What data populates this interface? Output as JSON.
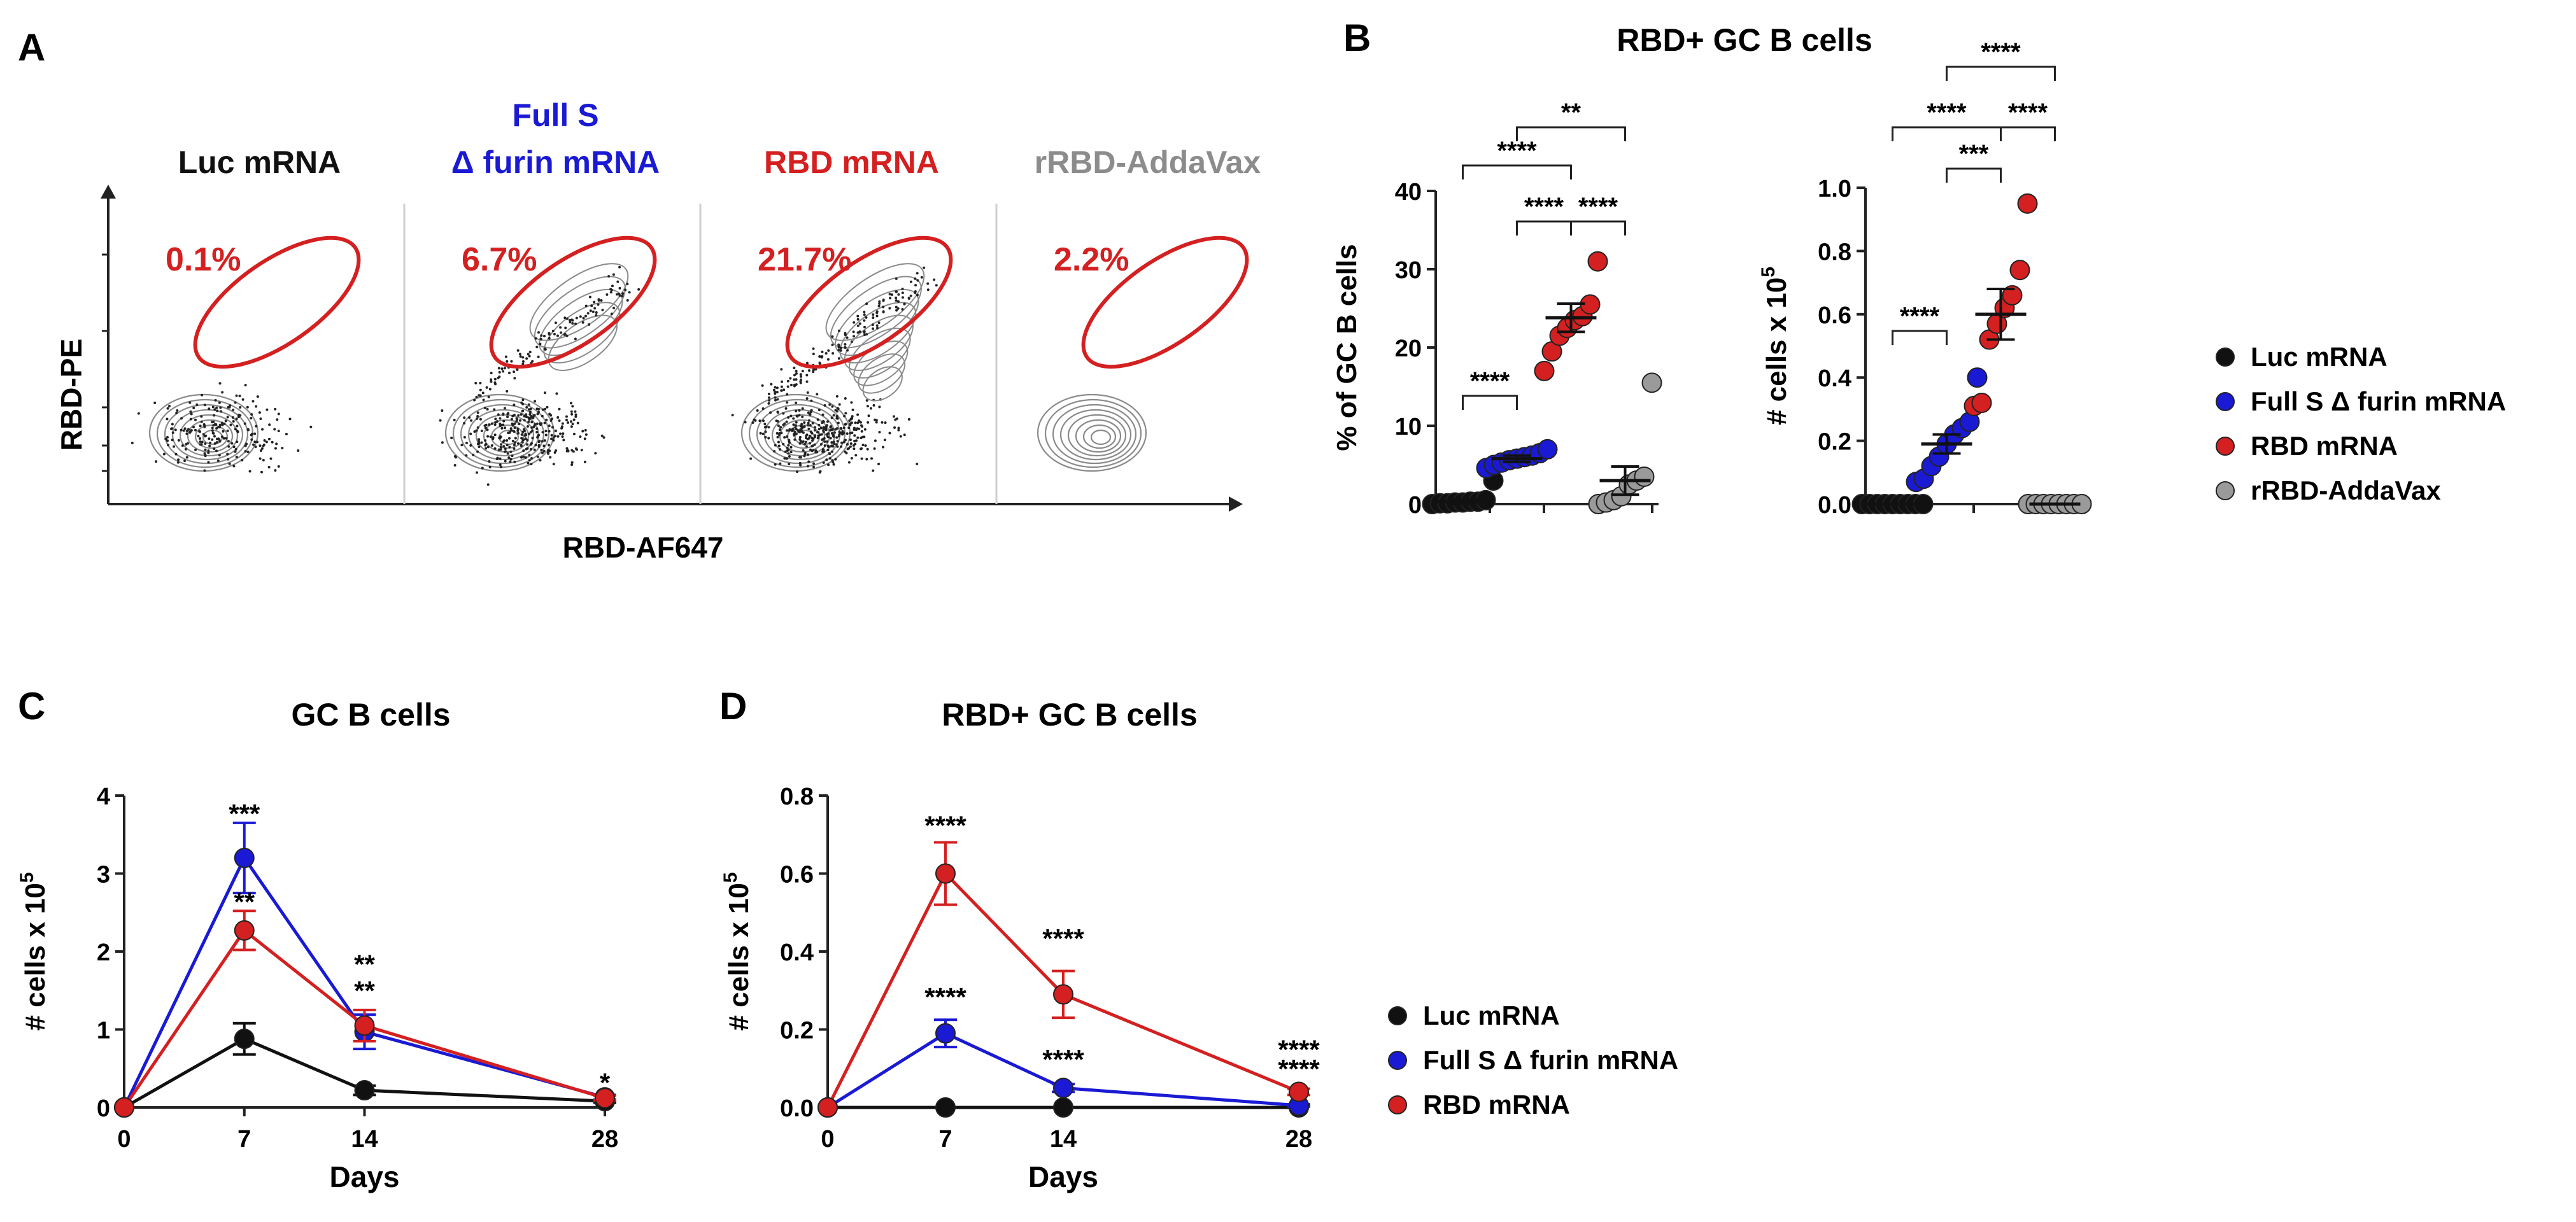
{
  "colors": {
    "luc": "#111111",
    "fulls": "#1a1ad4",
    "rbd": "#d42020",
    "rrbd": "#9a9a9a",
    "gate": "#d42020"
  },
  "panel_letters": {
    "a": "A",
    "b": "B",
    "c": "C",
    "d": "D"
  },
  "flow": {
    "ylabel": "RBD-PE",
    "xlabel": "RBD-AF647",
    "plots": [
      {
        "label_lines": [
          "Luc mRNA"
        ],
        "label_color": "#111111",
        "percent": "0.1%",
        "density": "low"
      },
      {
        "label_lines": [
          "Full S",
          "Δ furin mRNA"
        ],
        "label_color": "#1a1ad4",
        "percent": "6.7%",
        "density": "mid"
      },
      {
        "label_lines": [
          "RBD mRNA"
        ],
        "label_color": "#d42020",
        "percent": "21.7%",
        "density": "high"
      },
      {
        "label_lines": [
          "rRBD-AddaVax"
        ],
        "label_color": "#8c8c8c",
        "percent": "2.2%",
        "density": "none"
      }
    ]
  },
  "legend_b": [
    "Luc mRNA",
    "Full S Δ furin mRNA",
    "RBD mRNA",
    "rRBD-AddaVax"
  ],
  "legend_cd": [
    "Luc mRNA",
    "Full S Δ furin mRNA",
    "RBD mRNA"
  ],
  "chart_data": [
    {
      "id": "B-left",
      "type": "scatter",
      "title": "RBD+ GC B cells",
      "ylabel": "% of GC B cells",
      "ylim": [
        0,
        40
      ],
      "yticks": [
        "0",
        "10",
        "20",
        "30",
        "40"
      ],
      "groups": [
        {
          "name": "Luc mRNA",
          "mean": 0.3,
          "sem": 0.3,
          "values": [
            0.0,
            0.1,
            0.1,
            0.2,
            0.2,
            0.3,
            0.3,
            0.5,
            3.0
          ]
        },
        {
          "name": "Full S Δ furin mRNA",
          "mean": 5.8,
          "sem": 0.4,
          "values": [
            4.6,
            5.0,
            5.3,
            5.6,
            5.8,
            6.0,
            6.2,
            6.5,
            7.0
          ]
        },
        {
          "name": "RBD mRNA",
          "mean": 23.8,
          "sem": 1.8,
          "values": [
            17.0,
            19.5,
            21.5,
            22.5,
            23.5,
            24.0,
            25.5,
            31.0
          ]
        },
        {
          "name": "rRBD-AddaVax",
          "mean": 3.0,
          "sem": 1.8,
          "values": [
            0.0,
            0.2,
            0.5,
            1.0,
            2.5,
            3.0,
            3.5,
            15.5
          ]
        }
      ],
      "significance": [
        {
          "from": 0,
          "to": 1,
          "label": "****"
        },
        {
          "from": 1,
          "to": 2,
          "label": "****"
        },
        {
          "from": 0,
          "to": 2,
          "label": "****"
        },
        {
          "from": 2,
          "to": 3,
          "label": "****"
        },
        {
          "from": 1,
          "to": 3,
          "label": "**"
        }
      ]
    },
    {
      "id": "B-right",
      "type": "scatter",
      "ylabel": "# cells x 10",
      "ylabel_sup": "5",
      "ylim": [
        0,
        1.0
      ],
      "yticks": [
        "0.0",
        "0.2",
        "0.4",
        "0.6",
        "0.8",
        "1.0"
      ],
      "groups": [
        {
          "name": "Luc mRNA",
          "mean": 0.0,
          "sem": 0.0,
          "values": [
            0,
            0,
            0,
            0,
            0,
            0,
            0,
            0,
            0
          ]
        },
        {
          "name": "Full S Δ furin mRNA",
          "mean": 0.19,
          "sem": 0.03,
          "values": [
            0.07,
            0.08,
            0.12,
            0.15,
            0.19,
            0.22,
            0.24,
            0.26,
            0.4
          ]
        },
        {
          "name": "RBD mRNA",
          "mean": 0.6,
          "sem": 0.08,
          "values": [
            0.31,
            0.32,
            0.52,
            0.57,
            0.62,
            0.66,
            0.74,
            0.95
          ]
        },
        {
          "name": "rRBD-AddaVax",
          "mean": 0.0,
          "sem": 0.0,
          "values": [
            0,
            0,
            0,
            0,
            0,
            0,
            0,
            0
          ]
        }
      ],
      "significance": [
        {
          "from": 0,
          "to": 1,
          "label": "****"
        },
        {
          "from": 1,
          "to": 2,
          "label": "***"
        },
        {
          "from": 2,
          "to": 3,
          "label": "****"
        },
        {
          "from": 0,
          "to": 2,
          "label": "****"
        },
        {
          "from": 1,
          "to": 3,
          "label": "****"
        }
      ]
    },
    {
      "id": "C",
      "type": "line",
      "title": "GC B cells",
      "xlabel": "Days",
      "ylabel": "# cells x 10",
      "ylabel_sup": "5",
      "x": [
        0,
        7,
        14,
        28
      ],
      "xticks": [
        "0",
        "7",
        "14",
        "28"
      ],
      "ylim": [
        0,
        4
      ],
      "yticks": [
        "0",
        "1",
        "2",
        "3",
        "4"
      ],
      "series": [
        {
          "name": "Luc mRNA",
          "values": [
            0,
            0.88,
            0.22,
            0.08
          ],
          "errors": [
            0,
            0.2,
            0.06,
            0.02
          ]
        },
        {
          "name": "Full S Δ furin mRNA",
          "values": [
            0,
            3.2,
            0.97,
            0.13
          ],
          "errors": [
            0,
            0.45,
            0.22,
            0.03
          ]
        },
        {
          "name": "RBD mRNA",
          "values": [
            0,
            2.27,
            1.05,
            0.12
          ],
          "errors": [
            0,
            0.25,
            0.2,
            0.03
          ]
        }
      ],
      "annotations": [
        {
          "x": 7,
          "y": 3.65,
          "text": "***"
        },
        {
          "x": 7,
          "y": 2.52,
          "text": "**"
        },
        {
          "x": 14,
          "y": 1.72,
          "text": "**"
        },
        {
          "x": 14,
          "y": 1.38,
          "text": "**"
        },
        {
          "x": 28,
          "y": 0.2,
          "text": "*"
        }
      ]
    },
    {
      "id": "D",
      "type": "line",
      "title": "RBD+ GC B cells",
      "xlabel": "Days",
      "ylabel": "# cells x 10",
      "ylabel_sup": "5",
      "x": [
        0,
        7,
        14,
        28
      ],
      "xticks": [
        "0",
        "7",
        "14",
        "28"
      ],
      "ylim": [
        0,
        0.8
      ],
      "yticks": [
        "0.0",
        "0.2",
        "0.4",
        "0.6",
        "0.8"
      ],
      "series": [
        {
          "name": "Luc mRNA",
          "values": [
            0,
            0,
            0,
            0
          ],
          "errors": [
            0,
            0,
            0,
            0
          ]
        },
        {
          "name": "Full S Δ furin mRNA",
          "values": [
            0,
            0.19,
            0.05,
            0.005
          ],
          "errors": [
            0,
            0.035,
            0.01,
            0.003
          ]
        },
        {
          "name": "RBD mRNA",
          "values": [
            0,
            0.6,
            0.29,
            0.04
          ],
          "errors": [
            0,
            0.08,
            0.06,
            0.008
          ]
        }
      ],
      "annotations": [
        {
          "x": 7,
          "y": 0.7,
          "text": "****"
        },
        {
          "x": 7,
          "y": 0.26,
          "text": "****"
        },
        {
          "x": 14,
          "y": 0.41,
          "text": "****"
        },
        {
          "x": 14,
          "y": 0.1,
          "text": "****"
        },
        {
          "x": 28,
          "y": 0.125,
          "text": "****"
        },
        {
          "x": 28,
          "y": 0.075,
          "text": "****"
        }
      ]
    }
  ]
}
